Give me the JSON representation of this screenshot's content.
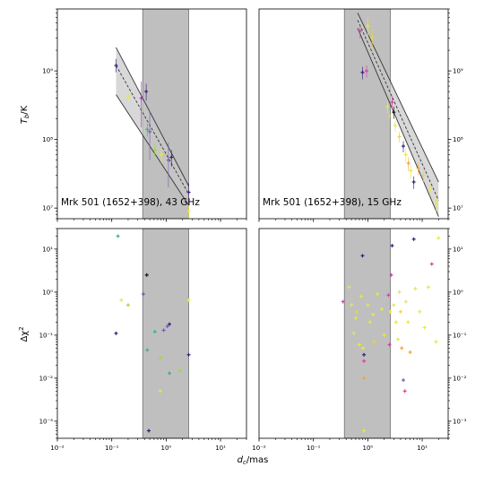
{
  "chart_data": {
    "type": "scatter",
    "xlabel": "d_c/mas",
    "x_axis": {
      "scale": "log",
      "xlim": [
        0.01,
        30
      ],
      "tick_labels": [
        "10⁻²",
        "10⁻¹",
        "10⁰",
        "10¹"
      ]
    },
    "panels": [
      {
        "id": "tb-43ghz",
        "title": "Mrk 501 (1652+398), 43 GHz",
        "ylabel": "T_b/K",
        "y_scale": "log",
        "ylim": [
          7000000.0,
          8000000000.0
        ],
        "y_tick_labels": [
          "10⁷",
          "10⁸",
          "10⁹"
        ],
        "y_ticks_side": "left",
        "shaded_x_range": [
          0.37,
          2.6
        ],
        "fit": {
          "best": [
            [
              0.12,
              1200000000.0
            ],
            [
              2.6,
              16000000.0
            ]
          ],
          "band_upper": [
            [
              0.12,
              2200000000.0
            ],
            [
              2.6,
              21000000.0
            ]
          ],
          "band_lower": [
            [
              0.12,
              450000000.0
            ],
            [
              2.6,
              11000000.0
            ]
          ]
        },
        "points": [
          {
            "x": 0.12,
            "y": 1200000000.0,
            "color": "#3b1a7a",
            "yerr": [
              250000000.0,
              300000000.0
            ]
          },
          {
            "x": 0.43,
            "y": 500000000.0,
            "color": "#3b1a7a",
            "yerr": [
              130000000.0,
              150000000.0
            ]
          },
          {
            "x": 0.35,
            "y": 400000000.0,
            "color": "#9b3ab0",
            "yerr": [
              250000000.0,
              300000000.0
            ]
          },
          {
            "x": 0.45,
            "y": 140000000.0,
            "color": "#35b779",
            "yerr": [
              30000000.0,
              30000000.0
            ]
          },
          {
            "x": 0.5,
            "y": 130000000.0,
            "color": "#7b5bb5",
            "yerr": [
              80000000.0,
              130000000.0
            ]
          },
          {
            "x": 0.62,
            "y": 70000000.0,
            "color": "#9fd93a",
            "yerr": [
              15000000.0,
              15000000.0
            ]
          },
          {
            "x": 0.82,
            "y": 60000000.0,
            "color": "#e8e840",
            "yerr": [
              15000000.0,
              15000000.0
            ]
          },
          {
            "x": 1.1,
            "y": 50000000.0,
            "color": "#7b5bb5",
            "yerr": [
              30000000.0,
              40000000.0
            ]
          },
          {
            "x": 1.25,
            "y": 55000000.0,
            "color": "#3b1a7a",
            "yerr": [
              15000000.0,
              15000000.0
            ]
          },
          {
            "x": 2.6,
            "y": 17000000.0,
            "color": "#3b1a7a",
            "yerr": [
              5000000.0,
              6000000.0
            ]
          },
          {
            "x": 2.6,
            "y": 9000000.0,
            "color": "#e8e840",
            "yerr": [
              2000000.0,
              2000000.0
            ]
          },
          {
            "x": 0.2,
            "y": 420000000.0,
            "color": "#e8e840",
            "yerr": [
              60000000.0,
              60000000.0
            ]
          }
        ]
      },
      {
        "id": "tb-15ghz",
        "title": "Mrk 501 (1652+398), 15 GHz",
        "ylabel": "",
        "y_scale": "log",
        "ylim": [
          7000000.0,
          8000000000.0
        ],
        "y_tick_labels": [
          "10⁷",
          "10⁸",
          "10⁹"
        ],
        "y_ticks_side": "right",
        "shaded_x_range": [
          0.37,
          2.6
        ],
        "fit": {
          "best": [
            [
              0.65,
              5500000000.0
            ],
            [
              20,
              13000000.0
            ]
          ],
          "band_upper": [
            [
              0.65,
              7000000000.0
            ],
            [
              20,
              24000000.0
            ]
          ],
          "band_lower": [
            [
              0.65,
              4200000000.0
            ],
            [
              20,
              7500000.0
            ]
          ]
        },
        "points": [
          {
            "x": 0.72,
            "y": 3800000000.0,
            "color": "#d640a8",
            "yerr": [
              800000000.0,
              800000000.0
            ]
          },
          {
            "x": 0.8,
            "y": 950000000.0,
            "color": "#3b1a7a",
            "yerr": [
              200000000.0,
              200000000.0
            ]
          },
          {
            "x": 0.95,
            "y": 1000000000.0,
            "color": "#d640a8",
            "yerr": [
              200000000.0,
              200000000.0
            ]
          },
          {
            "x": 1.0,
            "y": 4500000000.0,
            "color": "#e8e840",
            "yerr": [
              1500000000.0,
              1500000000.0
            ]
          },
          {
            "x": 1.2,
            "y": 3000000000.0,
            "color": "#f2d13a",
            "yerr": [
              1000000000.0,
              1000000000.0
            ]
          },
          {
            "x": 2.3,
            "y": 300000000.0,
            "color": "#e8e840",
            "yerr": [
              60000000.0,
              60000000.0
            ]
          },
          {
            "x": 2.5,
            "y": 220000000.0,
            "color": "#f2d13a",
            "yerr": [
              40000000.0,
              40000000.0
            ]
          },
          {
            "x": 2.8,
            "y": 350000000.0,
            "color": "#d640a8",
            "yerr": [
              80000000.0,
              80000000.0
            ]
          },
          {
            "x": 3.0,
            "y": 250000000.0,
            "color": "#111111",
            "yerr": [
              50000000.0,
              50000000.0
            ]
          },
          {
            "x": 3.2,
            "y": 160000000.0,
            "color": "#e8e840",
            "yerr": [
              30000000.0,
              30000000.0
            ]
          },
          {
            "x": 3.8,
            "y": 110000000.0,
            "color": "#f2d13a",
            "yerr": [
              20000000.0,
              20000000.0
            ]
          },
          {
            "x": 4.5,
            "y": 80000000.0,
            "color": "#3b1a7a",
            "yerr": [
              15000000.0,
              15000000.0
            ]
          },
          {
            "x": 5.0,
            "y": 60000000.0,
            "color": "#e8e840",
            "yerr": [
              15000000.0,
              15000000.0
            ]
          },
          {
            "x": 5.6,
            "y": 45000000.0,
            "color": "#f4a23a",
            "yerr": [
              10000000.0,
              10000000.0
            ]
          },
          {
            "x": 6.2,
            "y": 35000000.0,
            "color": "#e8e840",
            "yerr": [
              8000000.0,
              8000000.0
            ]
          },
          {
            "x": 7.0,
            "y": 24000000.0,
            "color": "#3b1a7a",
            "yerr": [
              5000000.0,
              5000000.0
            ]
          },
          {
            "x": 8.5,
            "y": 38000000.0,
            "color": "#f4a23a",
            "yerr": [
              8000000.0,
              8000000.0
            ]
          },
          {
            "x": 10.5,
            "y": 30000000.0,
            "color": "#f2d13a",
            "yerr": [
              6000000.0,
              6000000.0
            ]
          },
          {
            "x": 14.0,
            "y": 19000000.0,
            "color": "#e8e840",
            "yerr": [
              4000000.0,
              4000000.0
            ]
          },
          {
            "x": 18.0,
            "y": 12000000.0,
            "color": "#e8e840",
            "yerr": [
              3000000.0,
              3000000.0
            ]
          }
        ]
      },
      {
        "id": "dchi2-43ghz",
        "title": "",
        "ylabel": "Δχ²",
        "y_scale": "log",
        "ylim": [
          0.0004,
          30
        ],
        "y_tick_labels": [
          "10⁻³",
          "10⁻²",
          "10⁻¹",
          "10⁰",
          "10¹"
        ],
        "y_ticks_side": "left",
        "shaded_x_range": [
          0.37,
          2.6
        ],
        "points": [
          {
            "x": 0.13,
            "y": 20,
            "color": "#35b779"
          },
          {
            "x": 0.15,
            "y": 0.65,
            "color": "#e8e840"
          },
          {
            "x": 0.2,
            "y": 0.5,
            "color": "#9fd93a"
          },
          {
            "x": 0.12,
            "y": 0.11,
            "color": "#3b1a7a"
          },
          {
            "x": 0.38,
            "y": 0.9,
            "color": "#7b5bb5"
          },
          {
            "x": 0.44,
            "y": 2.5,
            "color": "#111111"
          },
          {
            "x": 0.45,
            "y": 0.045,
            "color": "#35b779"
          },
          {
            "x": 0.48,
            "y": 0.0006,
            "color": "#3b1a7a"
          },
          {
            "x": 0.62,
            "y": 0.12,
            "color": "#35b779"
          },
          {
            "x": 0.78,
            "y": 0.03,
            "color": "#9fd93a"
          },
          {
            "x": 0.78,
            "y": 0.005,
            "color": "#e8e840"
          },
          {
            "x": 0.9,
            "y": 0.13,
            "color": "#7b5bb5"
          },
          {
            "x": 1.05,
            "y": 0.16,
            "color": "#7b5bb5"
          },
          {
            "x": 1.15,
            "y": 0.18,
            "color": "#3b1a7a"
          },
          {
            "x": 1.15,
            "y": 0.013,
            "color": "#35b779"
          },
          {
            "x": 1.8,
            "y": 0.015,
            "color": "#9fd93a"
          },
          {
            "x": 2.6,
            "y": 0.035,
            "color": "#3b1a7a"
          },
          {
            "x": 2.6,
            "y": 0.65,
            "color": "#e8e840"
          }
        ]
      },
      {
        "id": "dchi2-15ghz",
        "title": "",
        "ylabel": "",
        "y_scale": "log",
        "ylim": [
          0.0004,
          30
        ],
        "y_tick_labels": [
          "10⁻³",
          "10⁻²",
          "10⁻¹",
          "10⁰",
          "10¹"
        ],
        "y_ticks_side": "right",
        "shaded_x_range": [
          0.37,
          2.6
        ],
        "points": [
          {
            "x": 0.35,
            "y": 0.6,
            "color": "#d640a8"
          },
          {
            "x": 0.45,
            "y": 1.3,
            "color": "#e8e840"
          },
          {
            "x": 0.5,
            "y": 0.5,
            "color": "#e8e840"
          },
          {
            "x": 0.55,
            "y": 0.11,
            "color": "#e8e840"
          },
          {
            "x": 0.6,
            "y": 0.25,
            "color": "#e8e840"
          },
          {
            "x": 0.62,
            "y": 0.35,
            "color": "#f2d13a"
          },
          {
            "x": 0.7,
            "y": 0.06,
            "color": "#e8e840"
          },
          {
            "x": 0.75,
            "y": 0.8,
            "color": "#e8e840"
          },
          {
            "x": 0.8,
            "y": 7.0,
            "color": "#3b1a7a"
          },
          {
            "x": 0.82,
            "y": 0.05,
            "color": "#e8e840"
          },
          {
            "x": 0.85,
            "y": 0.035,
            "color": "#3b1a7a"
          },
          {
            "x": 0.85,
            "y": 0.025,
            "color": "#d640a8"
          },
          {
            "x": 0.85,
            "y": 0.01,
            "color": "#f4a23a"
          },
          {
            "x": 0.85,
            "y": 0.0006,
            "color": "#e8e840"
          },
          {
            "x": 1.0,
            "y": 0.5,
            "color": "#e8e840"
          },
          {
            "x": 1.1,
            "y": 0.2,
            "color": "#e8e840"
          },
          {
            "x": 1.25,
            "y": 0.3,
            "color": "#e8e840"
          },
          {
            "x": 1.3,
            "y": 0.07,
            "color": "#f2d13a"
          },
          {
            "x": 1.5,
            "y": 0.9,
            "color": "#e8e840"
          },
          {
            "x": 1.8,
            "y": 0.4,
            "color": "#e8e840"
          },
          {
            "x": 2.0,
            "y": 0.1,
            "color": "#e8e840"
          },
          {
            "x": 2.4,
            "y": 0.85,
            "color": "#d640a8"
          },
          {
            "x": 2.5,
            "y": 0.06,
            "color": "#d640a8"
          },
          {
            "x": 2.6,
            "y": 0.35,
            "color": "#e8e840"
          },
          {
            "x": 2.7,
            "y": 2.5,
            "color": "#d640a8"
          },
          {
            "x": 2.8,
            "y": 12,
            "color": "#3b1a7a"
          },
          {
            "x": 3.0,
            "y": 0.5,
            "color": "#e8e840"
          },
          {
            "x": 3.3,
            "y": 0.2,
            "color": "#e8e840"
          },
          {
            "x": 3.6,
            "y": 0.08,
            "color": "#e8e840"
          },
          {
            "x": 3.8,
            "y": 1.0,
            "color": "#e8e840"
          },
          {
            "x": 4.0,
            "y": 0.35,
            "color": "#f2d13a"
          },
          {
            "x": 4.2,
            "y": 0.05,
            "color": "#f4a23a"
          },
          {
            "x": 4.5,
            "y": 0.009,
            "color": "#7b5bb5"
          },
          {
            "x": 4.8,
            "y": 0.005,
            "color": "#e84a5f"
          },
          {
            "x": 5.0,
            "y": 0.6,
            "color": "#e8e840"
          },
          {
            "x": 5.5,
            "y": 0.2,
            "color": "#e8e840"
          },
          {
            "x": 6.0,
            "y": 0.04,
            "color": "#f4a23a"
          },
          {
            "x": 7.0,
            "y": 17,
            "color": "#3b1a7a"
          },
          {
            "x": 7.5,
            "y": 1.2,
            "color": "#e8e840"
          },
          {
            "x": 9.0,
            "y": 0.35,
            "color": "#e8e840"
          },
          {
            "x": 11.0,
            "y": 0.15,
            "color": "#e8e840"
          },
          {
            "x": 13.0,
            "y": 1.3,
            "color": "#e8e840"
          },
          {
            "x": 15.0,
            "y": 4.5,
            "color": "#d640a8"
          },
          {
            "x": 18.0,
            "y": 0.07,
            "color": "#e8e840"
          },
          {
            "x": 20.0,
            "y": 18,
            "color": "#e8e840"
          }
        ]
      }
    ]
  }
}
